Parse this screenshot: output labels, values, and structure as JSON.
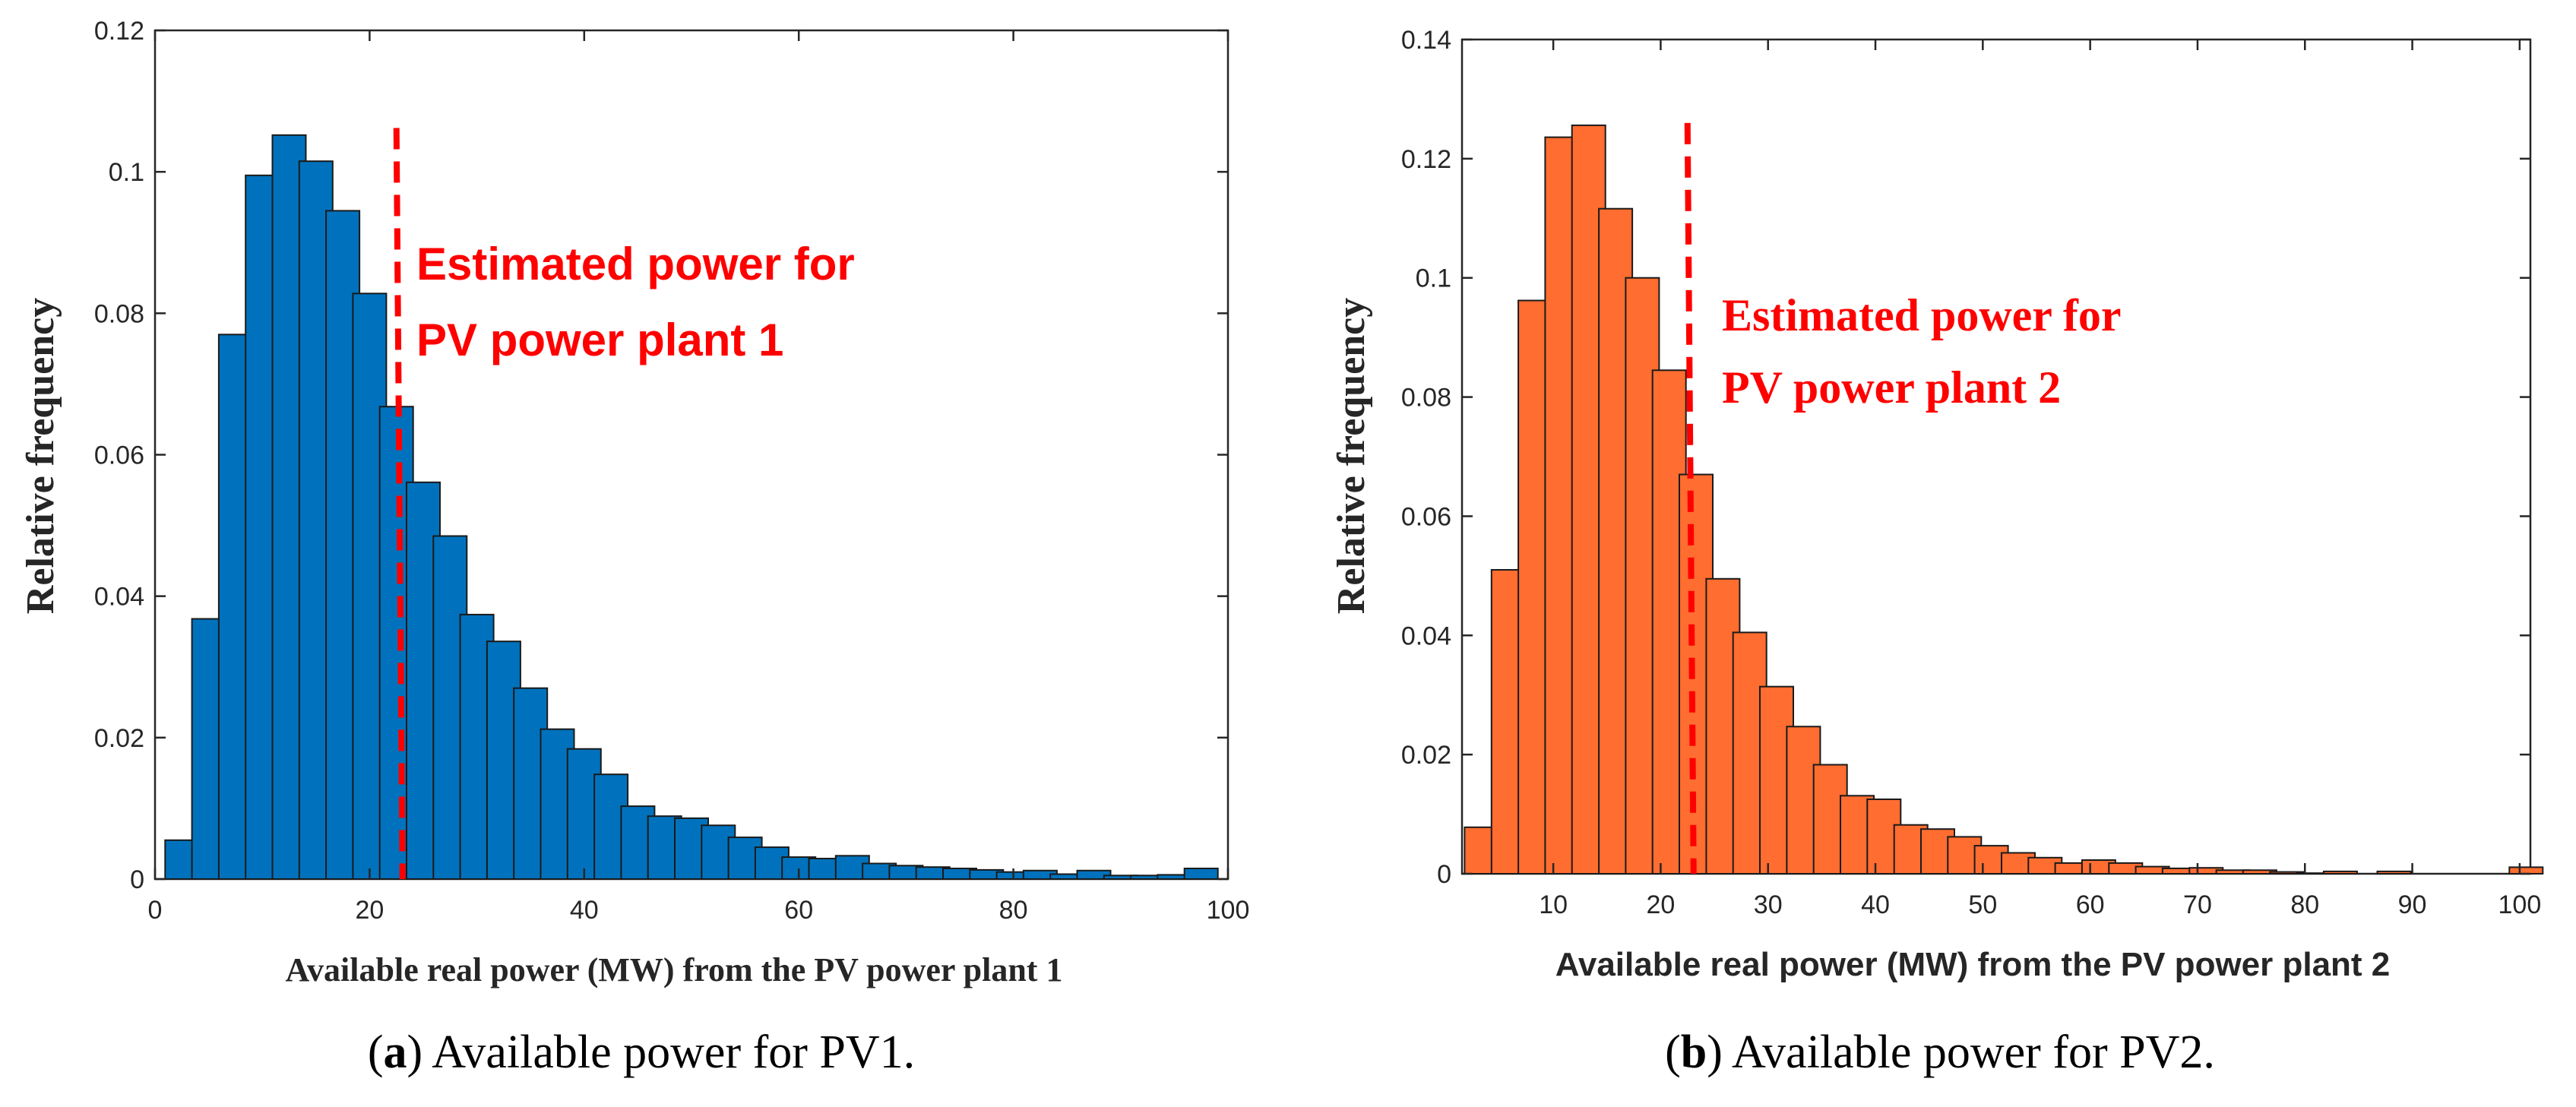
{
  "chart_data": [
    {
      "type": "bar",
      "panel": "a",
      "caption": {
        "prefix": "(",
        "letter": "a",
        "text": ") Available power for PV1."
      },
      "xlabel": "Available real power (MW) from the PV power plant 1",
      "ylabel": "Relative frequency",
      "xlim": [
        0,
        100
      ],
      "ylim": [
        0,
        0.12
      ],
      "xticks": [
        0,
        20,
        40,
        60,
        80,
        100
      ],
      "yticks": [
        0,
        0.02,
        0.04,
        0.06,
        0.08,
        0.1,
        0.12
      ],
      "ytick_labels": [
        "0",
        "0.02",
        "0.04",
        "0.06",
        "0.08",
        "0.1",
        "0.12"
      ],
      "bar_color": "#0072bd",
      "annotation": {
        "x": 22.5,
        "lines": [
          "Estimated power for",
          "PV power plant 1"
        ],
        "color": "#ff0000"
      },
      "x": [
        2.5,
        5,
        7.5,
        10,
        12.5,
        15,
        17.5,
        20,
        22.5,
        25,
        27.5,
        30,
        32.5,
        35,
        37.5,
        40,
        42.5,
        45,
        47.5,
        50,
        52.5,
        55,
        57.5,
        60,
        62.5,
        65,
        67.5,
        70,
        72.5,
        75,
        77.5,
        80,
        82.5,
        85,
        87.5,
        90,
        92.5,
        95,
        97.5
      ],
      "values": [
        0.0055,
        0.0368,
        0.077,
        0.0995,
        0.1052,
        0.1015,
        0.0945,
        0.0828,
        0.0668,
        0.0561,
        0.0485,
        0.0374,
        0.0336,
        0.027,
        0.0212,
        0.0184,
        0.0148,
        0.0103,
        0.0089,
        0.0086,
        0.0076,
        0.0059,
        0.0045,
        0.0031,
        0.0029,
        0.0033,
        0.0022,
        0.0019,
        0.0017,
        0.0015,
        0.0013,
        0.001,
        0.0012,
        0.0007,
        0.0012,
        0.0005,
        0.0005,
        0.0006,
        0.0015
      ]
    },
    {
      "type": "bar",
      "panel": "b",
      "caption": {
        "prefix": "(",
        "letter": "b",
        "text": ") Available power for PV2."
      },
      "xlabel": "Available real power (MW) from the PV power plant 2",
      "ylabel": "Relative frequency",
      "xlim": [
        1.5,
        101
      ],
      "ylim": [
        0,
        0.14
      ],
      "xticks": [
        10,
        20,
        30,
        40,
        50,
        60,
        70,
        80,
        90,
        100
      ],
      "yticks": [
        0,
        0.02,
        0.04,
        0.06,
        0.08,
        0.1,
        0.12,
        0.14
      ],
      "ytick_labels": [
        "0",
        "0.02",
        "0.04",
        "0.06",
        "0.08",
        "0.1",
        "0.12",
        "0.14"
      ],
      "bar_color": "#ff6d30",
      "annotation": {
        "x": 22.5,
        "lines": [
          "Estimated power for",
          "PV power plant 2"
        ],
        "color": "#ff0000"
      },
      "x": [
        3.3,
        5.8,
        8.3,
        10.8,
        13.3,
        15.8,
        18.3,
        20.8,
        23.3,
        25.8,
        28.3,
        30.8,
        33.3,
        35.8,
        38.3,
        40.8,
        43.3,
        45.8,
        48.3,
        50.8,
        53.3,
        55.8,
        58.3,
        60.8,
        63.3,
        65.8,
        68.3,
        70.8,
        73.3,
        75.8,
        78.3,
        80.8,
        83.3,
        85.8,
        88.3,
        90.8,
        93.3,
        95.8,
        98.3,
        100.6
      ],
      "values": [
        0.0078,
        0.051,
        0.0962,
        0.1236,
        0.1256,
        0.1116,
        0.1,
        0.0845,
        0.067,
        0.0495,
        0.0405,
        0.0314,
        0.0247,
        0.0183,
        0.0131,
        0.0125,
        0.0082,
        0.0075,
        0.0062,
        0.0047,
        0.0035,
        0.0027,
        0.0018,
        0.0023,
        0.0018,
        0.0012,
        0.0009,
        0.001,
        0.0006,
        0.0006,
        0.0003,
        0.0001,
        0.0004,
        0.0,
        0.0004,
        0.0,
        0.0,
        0.0,
        0.0,
        0.0011
      ]
    }
  ]
}
